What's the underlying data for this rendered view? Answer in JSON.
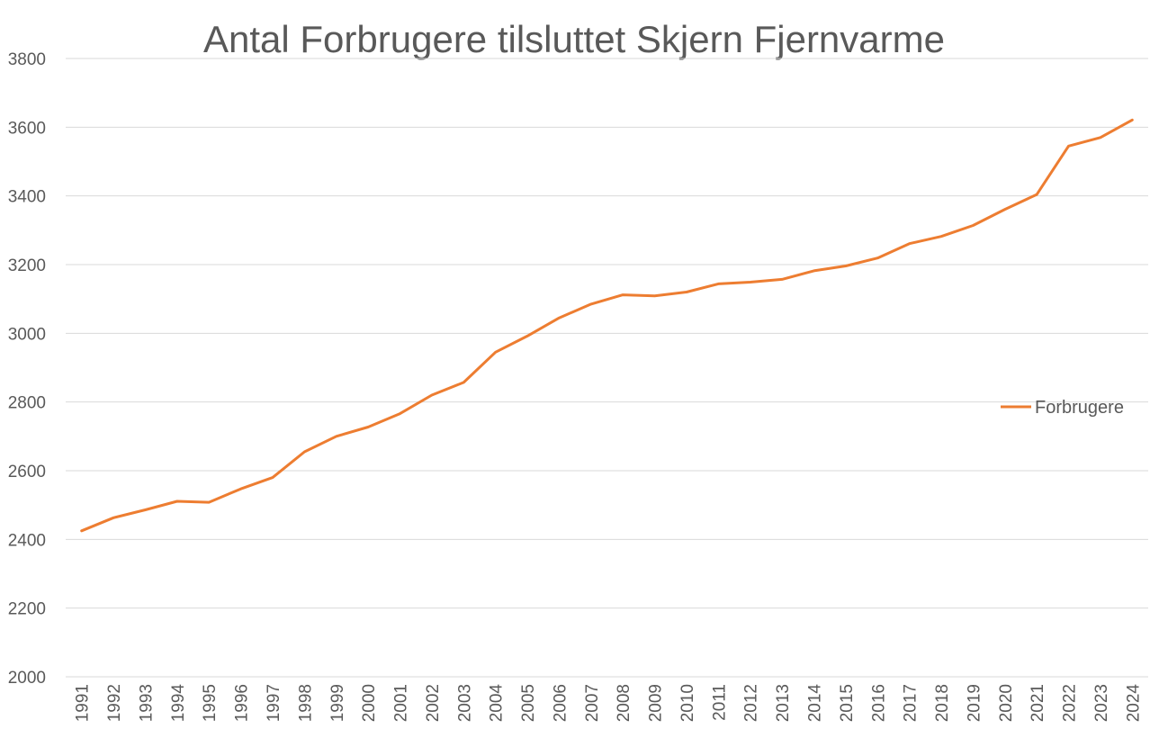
{
  "chart_data": {
    "type": "line",
    "title": "Antal Forbrugere tilsluttet Skjern Fjernvarme",
    "xlabel": "",
    "ylabel": "",
    "ylim": [
      2000,
      3800
    ],
    "yticks": [
      2000,
      2200,
      2400,
      2600,
      2800,
      3000,
      3200,
      3400,
      3600,
      3800
    ],
    "grid": true,
    "legend_position": "right",
    "categories": [
      "1991",
      "1992",
      "1993",
      "1994",
      "1995",
      "1996",
      "1997",
      "1998",
      "1999",
      "2000",
      "2001",
      "2002",
      "2003",
      "2004",
      "2005",
      "2006",
      "2007",
      "2008",
      "2009",
      "2010",
      "2011",
      "2012",
      "2013",
      "2014",
      "2015",
      "2016",
      "2017",
      "2018",
      "2019",
      "2020",
      "2021",
      "2022",
      "2023",
      "2024"
    ],
    "series": [
      {
        "name": "Forbrugere",
        "color": "#ED7D31",
        "values": [
          2425,
          2463,
          2486,
          2511,
          2508,
          2547,
          2580,
          2655,
          2700,
          2727,
          2766,
          2820,
          2857,
          2945,
          2992,
          3045,
          3085,
          3112,
          3109,
          3120,
          3144,
          3149,
          3157,
          3182,
          3196,
          3219,
          3261,
          3282,
          3314,
          3361,
          3404,
          3545,
          3570,
          3621
        ]
      }
    ]
  }
}
